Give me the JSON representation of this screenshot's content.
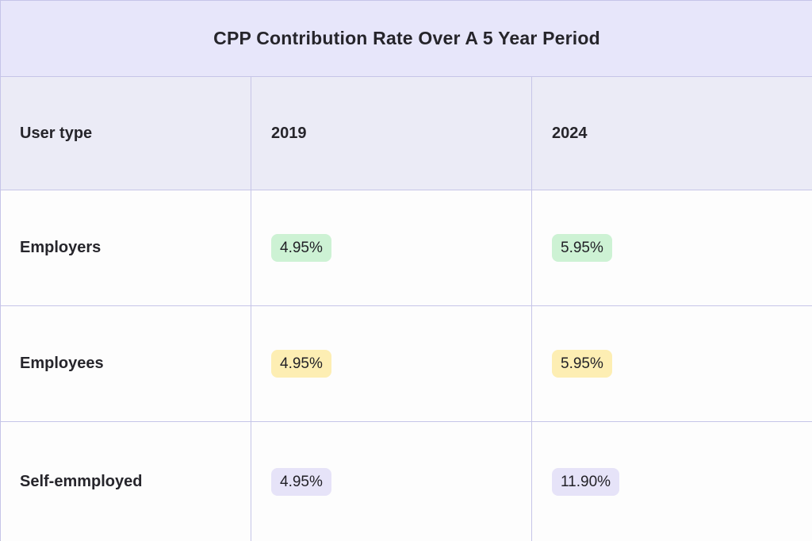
{
  "title": "CPP Contribution Rate Over A 5 Year Period",
  "chart_data": {
    "type": "table",
    "title": "CPP Contribution Rate Over A 5 Year Period",
    "columns": [
      "User type",
      "2019",
      "2024"
    ],
    "rows": [
      {
        "label": "Employers",
        "values": {
          "2019": "4.95%",
          "2024": "5.95%"
        },
        "highlight": "green"
      },
      {
        "label": "Employees",
        "values": {
          "2019": "4.95%",
          "2024": "5.95%"
        },
        "highlight": "yellow"
      },
      {
        "label": "Self-emmployed",
        "values": {
          "2019": "4.95%",
          "2024": "11.90%"
        },
        "highlight": "purple"
      }
    ]
  },
  "colors": {
    "highlight_green": "#cdf2d4",
    "highlight_yellow": "#fdeeb3",
    "highlight_purple": "#e6e3f8",
    "title_band_bg": "#e7e6fa",
    "header_row_bg": "#ebebf6",
    "row_bg": "#fdfdfd",
    "border": "#c6c5e8",
    "text": "#26252b"
  }
}
